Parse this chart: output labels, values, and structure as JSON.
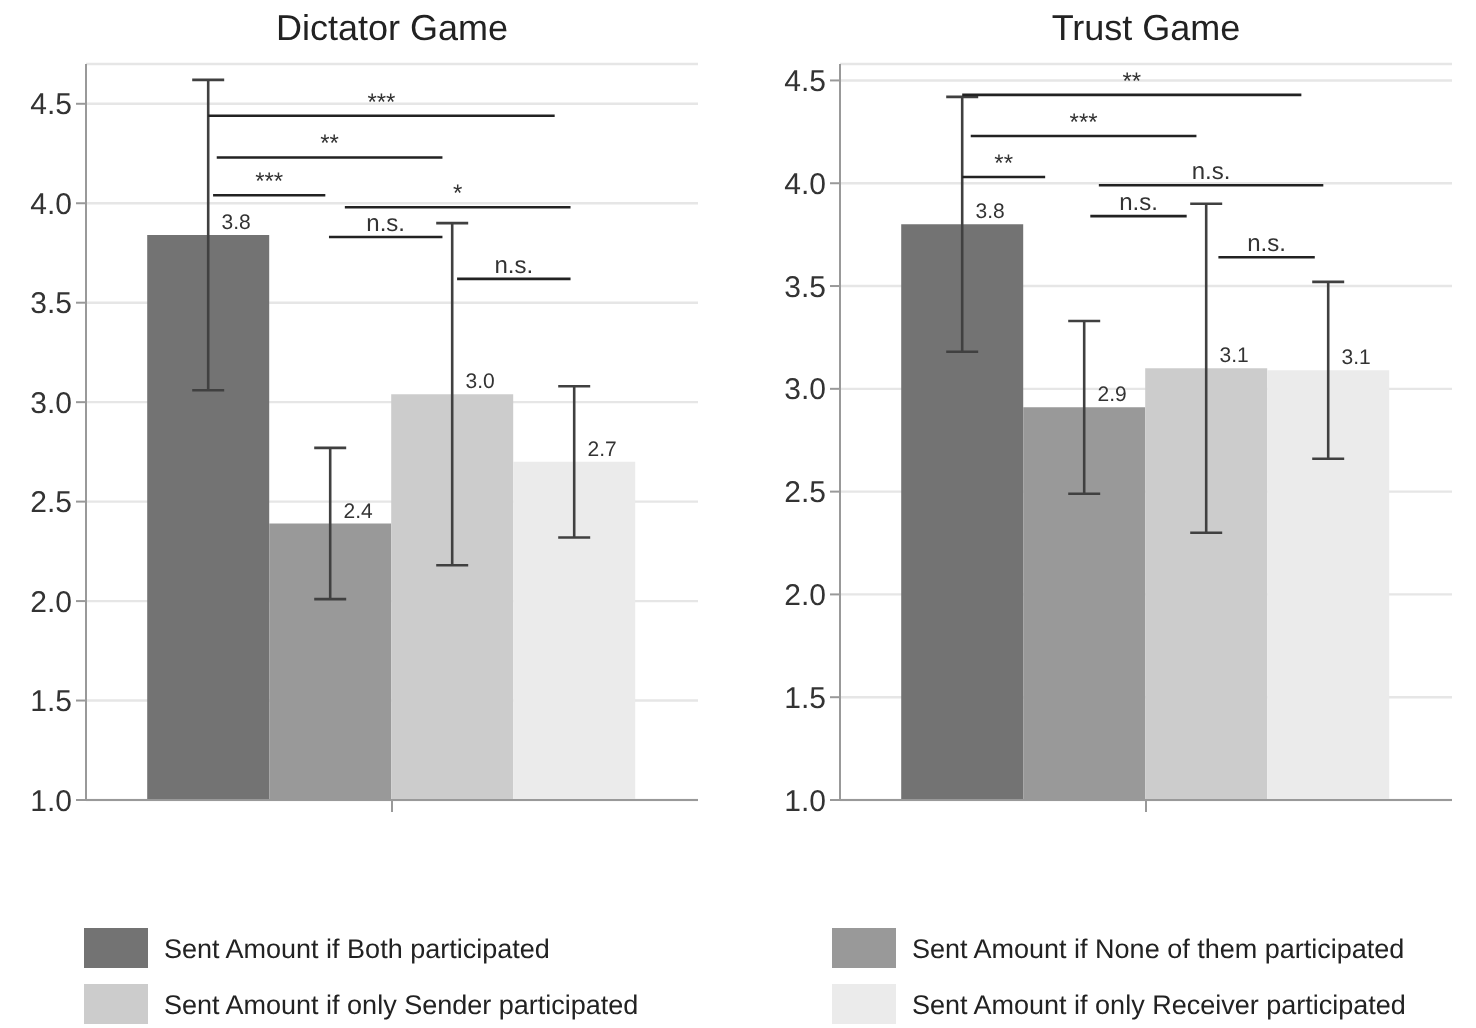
{
  "chart_data": [
    {
      "type": "bar",
      "title": "Dictator Game",
      "categories": [
        null
      ],
      "series": [
        {
          "name": "Sent Amount if Both participated",
          "color": "#737373",
          "values": [
            3.84
          ],
          "errors": [
            0.78
          ],
          "value_labels": [
            "3.8"
          ]
        },
        {
          "name": "Sent Amount if None of them participated",
          "color": "#999999",
          "values": [
            2.39
          ],
          "errors": [
            0.38
          ],
          "value_labels": [
            "2.4"
          ]
        },
        {
          "name": "Sent Amount if only Sender participated",
          "color": "#cccccc",
          "values": [
            3.04
          ],
          "errors": [
            0.86
          ],
          "value_labels": [
            "3.0"
          ]
        },
        {
          "name": "Sent Amount if only Receiver participated",
          "color": "#ebebeb",
          "values": [
            2.7
          ],
          "errors": [
            0.38
          ],
          "value_labels": [
            "2.7"
          ]
        }
      ],
      "ylim": [
        1,
        4.7
      ],
      "yticks": [
        {
          "value": 1,
          "label": "1.0"
        },
        1.5,
        {
          "value": 2,
          "label": "2.0"
        },
        2.5,
        {
          "value": 3,
          "label": "3.0"
        },
        3.5,
        {
          "value": 4,
          "label": "4.0"
        },
        4.5
      ],
      "grid": "y",
      "legend": "bottom",
      "annotations": [
        "***",
        "**",
        "***",
        "*",
        "n.s.",
        "n.s."
      ]
    },
    {
      "type": "bar",
      "title": "Trust Game",
      "categories": [
        null
      ],
      "series": [
        {
          "color": "#737373",
          "values": [
            3.8
          ],
          "errors": [
            0.62
          ],
          "value_labels": [
            "3.8"
          ]
        },
        {
          "color": "#999999",
          "values": [
            2.91
          ],
          "errors": [
            0.42
          ],
          "value_labels": [
            "2.9"
          ]
        },
        {
          "color": "#cccccc",
          "values": [
            3.1
          ],
          "errors": [
            0.8
          ],
          "value_labels": [
            "3.1"
          ]
        },
        {
          "color": "#ebebeb",
          "values": [
            3.09
          ],
          "errors": [
            0.43
          ],
          "value_labels": [
            "3.1"
          ]
        }
      ],
      "ylim": [
        1,
        4.58
      ],
      "yticks": [
        {
          "value": 1,
          "label": "1.0"
        },
        1.5,
        {
          "value": 2,
          "label": "2.0"
        },
        2.5,
        {
          "value": 3,
          "label": "3.0"
        },
        3.5,
        {
          "value": 4,
          "label": "4.0"
        },
        4.5
      ],
      "grid": "y",
      "annotations": [
        "**",
        "***",
        "**",
        "n.s.",
        "n.s.",
        "n.s."
      ]
    }
  ]
}
